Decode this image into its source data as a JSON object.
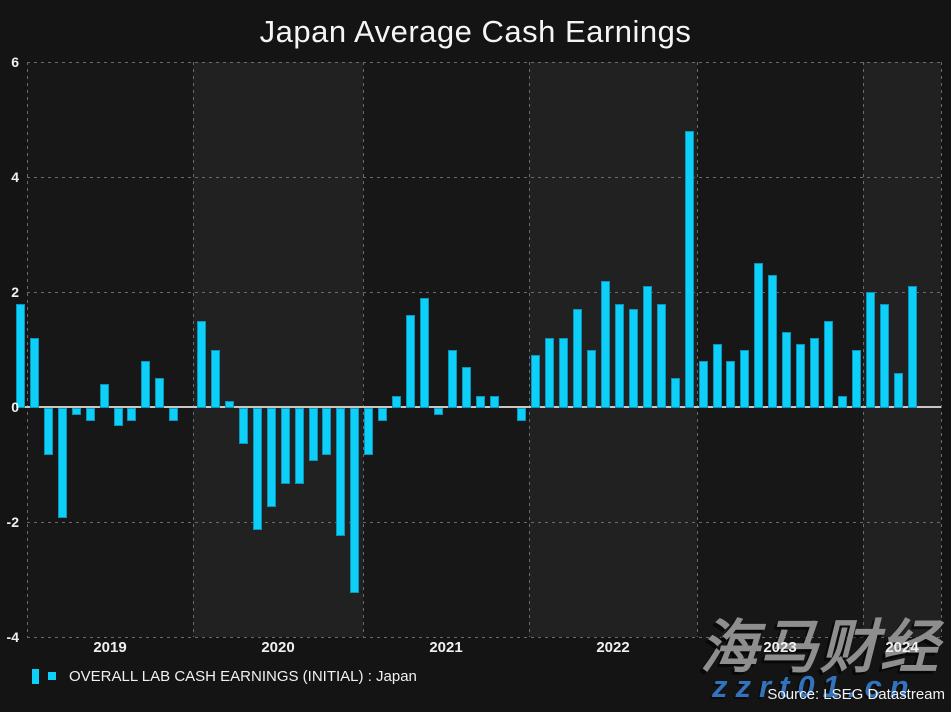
{
  "title": "Japan Average Cash Earnings",
  "legend": {
    "label": "OVERALL LAB CASH EARNINGS (INITIAL) : Japan"
  },
  "source": "Source: LSEG Datastream",
  "watermark": {
    "line1": "海马财经",
    "line2": "zzrt01.cn"
  },
  "colors": {
    "bar_fill": "#0dcff7",
    "bar_border": "#0a95bd",
    "page_background": "#141414",
    "band_dark": "#171717",
    "band_light": "#212121",
    "grid": "#6a6a6a",
    "zero_line": "#c9c6c1",
    "text": "#f0f0f0",
    "watermark_gray": "#8e8e8e",
    "watermark_blue": "#3273bd"
  },
  "chart_data": {
    "type": "bar",
    "title": "Japan Average Cash Earnings",
    "xlabel": "",
    "ylabel": "",
    "ylim": [
      -4,
      6
    ],
    "yticks": [
      6,
      4,
      2,
      0,
      -2,
      -4
    ],
    "xticks": [
      "2019",
      "2020",
      "2021",
      "2022",
      "2023",
      "2024"
    ],
    "grid": true,
    "legend_position": "bottom-left",
    "series_name": "OVERALL LAB CASH EARNINGS (INITIAL) : Japan",
    "x": [
      "2018-12",
      "2019-01",
      "2019-02",
      "2019-03",
      "2019-04",
      "2019-05",
      "2019-06",
      "2019-07",
      "2019-08",
      "2019-09",
      "2019-10",
      "2019-11",
      "2019-12",
      "2020-01",
      "2020-02",
      "2020-03",
      "2020-04",
      "2020-05",
      "2020-06",
      "2020-07",
      "2020-08",
      "2020-09",
      "2020-10",
      "2020-11",
      "2020-12",
      "2021-01",
      "2021-02",
      "2021-03",
      "2021-04",
      "2021-05",
      "2021-06",
      "2021-07",
      "2021-08",
      "2021-09",
      "2021-10",
      "2021-11",
      "2021-12",
      "2022-01",
      "2022-02",
      "2022-03",
      "2022-04",
      "2022-05",
      "2022-06",
      "2022-07",
      "2022-08",
      "2022-09",
      "2022-10",
      "2022-11",
      "2022-12",
      "2023-01",
      "2023-02",
      "2023-03",
      "2023-04",
      "2023-05",
      "2023-06",
      "2023-07",
      "2023-08",
      "2023-09",
      "2023-10",
      "2023-11",
      "2023-12",
      "2024-01",
      "2024-02",
      "2024-03",
      "2024-04"
    ],
    "values": [
      1.8,
      1.2,
      -0.8,
      -1.9,
      -0.1,
      -0.2,
      0.4,
      -0.3,
      -0.2,
      0.8,
      0.5,
      -0.2,
      0.0,
      1.5,
      1.0,
      0.1,
      -0.6,
      -2.1,
      -1.7,
      -1.3,
      -1.3,
      -0.9,
      -0.8,
      -2.2,
      -3.2,
      -0.8,
      -0.2,
      0.2,
      1.6,
      1.9,
      -0.1,
      1.0,
      0.7,
      0.2,
      0.2,
      0.0,
      -0.2,
      0.9,
      1.2,
      1.2,
      1.7,
      1.0,
      2.2,
      1.8,
      1.7,
      2.1,
      1.8,
      0.5,
      4.8,
      0.8,
      1.1,
      0.8,
      1.0,
      2.5,
      2.3,
      1.3,
      1.1,
      1.2,
      1.5,
      0.2,
      1.0,
      2.0,
      1.8,
      0.6,
      2.1
    ]
  }
}
